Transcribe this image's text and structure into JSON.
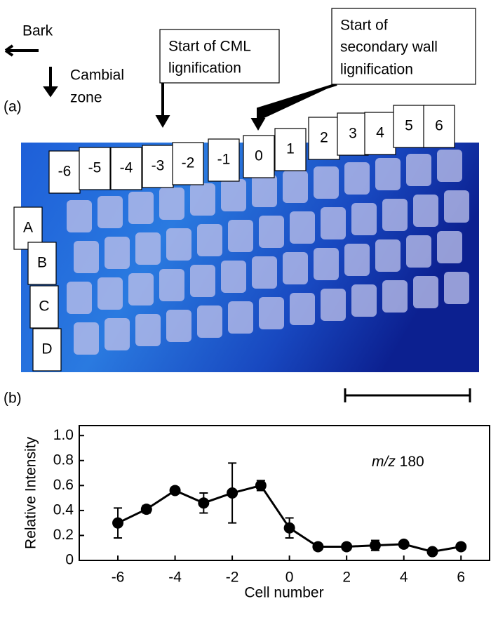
{
  "panel_a": {
    "label": "(a)",
    "bark": "Bark",
    "cambial": [
      "Cambial",
      "zone"
    ],
    "cml_callout": [
      "Start of CML",
      "lignification"
    ],
    "sw_callout": [
      "Start of",
      "secondary wall",
      "lignification"
    ],
    "cell_labels": [
      "-6",
      "-5",
      "-4",
      "-3",
      "-2",
      "-1",
      "0",
      "1",
      "2",
      "3",
      "4",
      "5",
      "6"
    ],
    "row_labels": [
      "A",
      "B",
      "C",
      "D"
    ]
  },
  "chart_data": {
    "type": "line",
    "panel_label": "(b)",
    "x_label": "Cell number",
    "y_label": "Relative Intensity",
    "annotation": {
      "italic": "m/z",
      "text": "180"
    },
    "x": [
      -6,
      -5,
      -4,
      -3,
      -2,
      -1,
      0,
      1,
      2,
      3,
      4,
      5,
      6
    ],
    "series": [
      {
        "color": "#000000",
        "values": [
          0.3,
          0.41,
          0.56,
          0.46,
          0.54,
          0.6,
          0.26,
          0.11,
          0.11,
          0.12,
          0.13,
          0.07,
          0.11
        ],
        "errors": [
          0.12,
          0.03,
          0.01,
          0.08,
          0.24,
          0.04,
          0.08,
          0.02,
          0.01,
          0.04,
          0.02,
          0.01,
          0.01
        ]
      }
    ],
    "xlim": [
      -7.35,
      7
    ],
    "ylim": [
      0,
      1.08
    ],
    "xticks": [
      -6,
      -4,
      -2,
      0,
      2,
      4,
      6
    ],
    "yticks": [
      0,
      0.2,
      0.4,
      0.6,
      0.8,
      {
        "value": 1,
        "label": "1.0"
      }
    ]
  }
}
